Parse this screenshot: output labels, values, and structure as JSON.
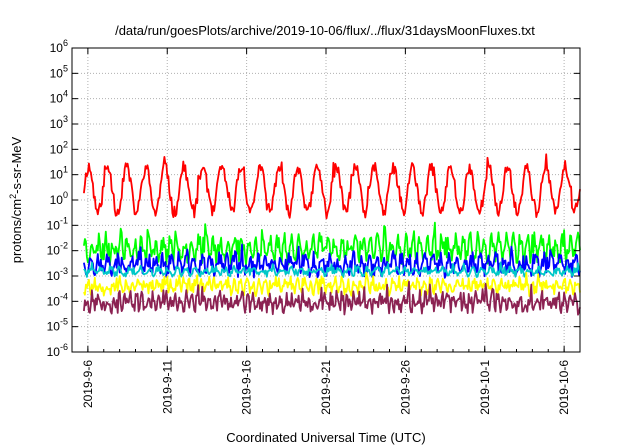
{
  "chart_data": {
    "type": "line",
    "title": "/data/run/goesPlots/archive/2019-10-06/flux/../flux/31daysMoonFluxes.txt",
    "xlabel": "Coordinated Universal Time (UTC)",
    "ylabel": {
      "pre": "protons/cm",
      "sup": "2",
      "post": "-s-sr-MeV"
    },
    "yscale": "log",
    "ylim": [
      1e-06,
      1000000.0
    ],
    "y_ticks": [
      {
        "base": "10",
        "exp": "-6"
      },
      {
        "base": "10",
        "exp": "-5"
      },
      {
        "base": "10",
        "exp": "-4"
      },
      {
        "base": "10",
        "exp": "-3"
      },
      {
        "base": "10",
        "exp": "-2"
      },
      {
        "base": "10",
        "exp": "-1"
      },
      {
        "base": "10",
        "exp": "0"
      },
      {
        "base": "10",
        "exp": "1"
      },
      {
        "base": "10",
        "exp": "2"
      },
      {
        "base": "10",
        "exp": "3"
      },
      {
        "base": "10",
        "exp": "4"
      },
      {
        "base": "10",
        "exp": "5"
      },
      {
        "base": "10",
        "exp": "6"
      }
    ],
    "x_range": [
      "2019-09-05",
      "2019-10-07"
    ],
    "x_ticks": [
      "2019-9-6",
      "2019-9-11",
      "2019-9-16",
      "2019-9-21",
      "2019-9-26",
      "2019-10-1",
      "2019-10-6"
    ],
    "grid": true,
    "legend": "none",
    "series": [
      {
        "color": "#ff0000",
        "base": 2.5,
        "amp_decades": 0.9,
        "period_days": 1.2,
        "noise_decades": 0.25,
        "samples": 500,
        "seed": 11
      },
      {
        "color": "#00ff00",
        "base": 0.012,
        "amp_decades": 0.35,
        "period_days": 0.45,
        "noise_decades": 0.35,
        "samples": 500,
        "seed": 23
      },
      {
        "color": "#0000ff",
        "base": 0.0028,
        "amp_decades": 0.25,
        "period_days": 0.5,
        "noise_decades": 0.3,
        "samples": 500,
        "seed": 37
      },
      {
        "color": "#00c8c8",
        "base": 0.0015,
        "amp_decades": 0.1,
        "period_days": 0.6,
        "noise_decades": 0.12,
        "samples": 500,
        "seed": 41
      },
      {
        "color": "#ffff00",
        "base": 0.0004,
        "amp_decades": 0.15,
        "period_days": 0.4,
        "noise_decades": 0.25,
        "samples": 500,
        "seed": 53
      },
      {
        "color": "#8b2252",
        "base": 9e-05,
        "amp_decades": 0.2,
        "period_days": 0.35,
        "noise_decades": 0.3,
        "samples": 500,
        "seed": 67
      }
    ]
  }
}
